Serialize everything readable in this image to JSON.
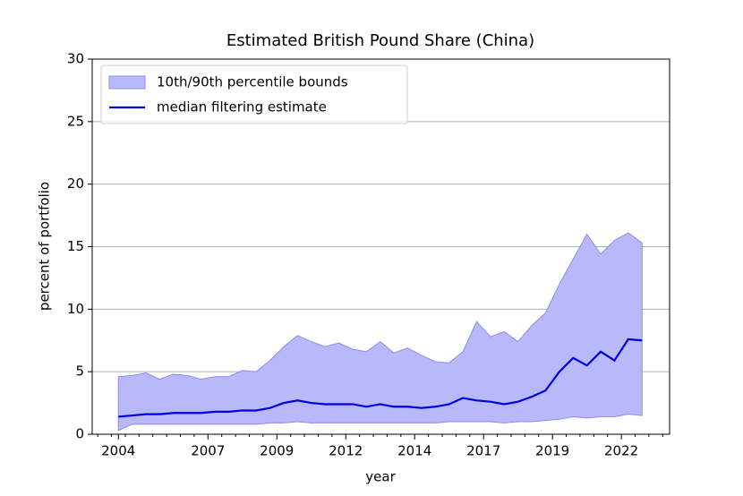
{
  "chart_data": {
    "type": "line",
    "title": "Estimated British Pound Share (China)",
    "xlabel": "year",
    "ylabel": "percent of portfolio",
    "x": [
      2003.75,
      2004.25,
      2004.75,
      2005.25,
      2005.75,
      2006.25,
      2006.75,
      2007.25,
      2007.75,
      2008.25,
      2008.75,
      2009.25,
      2009.75,
      2010.25,
      2010.75,
      2011.25,
      2011.75,
      2012.25,
      2012.75,
      2013.25,
      2013.75,
      2014.25,
      2014.75,
      2015.25,
      2015.75,
      2016.25,
      2016.75,
      2017.25,
      2017.75,
      2018.25,
      2018.75,
      2019.25,
      2019.75,
      2020.25,
      2020.75,
      2021.25,
      2021.75,
      2022.25,
      2022.75
    ],
    "band": {
      "name": "10th/90th percentile bounds",
      "color": "#b8b8fb",
      "edge": "#8c8cf0",
      "upper": [
        4.6,
        4.7,
        4.9,
        4.4,
        4.8,
        4.7,
        4.4,
        4.6,
        4.6,
        5.1,
        5.0,
        5.9,
        7.0,
        7.9,
        7.4,
        7.0,
        7.3,
        6.8,
        6.6,
        7.4,
        6.5,
        6.9,
        6.3,
        5.8,
        5.7,
        6.6,
        9.0,
        7.8,
        8.2,
        7.4,
        8.7,
        9.7,
        12.0,
        14.0,
        16.0,
        14.4,
        15.5,
        16.1,
        15.3
      ],
      "lower": [
        0.3,
        0.8,
        0.8,
        0.8,
        0.8,
        0.8,
        0.8,
        0.8,
        0.8,
        0.8,
        0.8,
        0.9,
        0.9,
        1.0,
        0.9,
        0.9,
        0.9,
        0.9,
        0.9,
        0.9,
        0.9,
        0.9,
        0.9,
        0.9,
        1.0,
        1.0,
        1.0,
        1.0,
        0.9,
        1.0,
        1.0,
        1.1,
        1.2,
        1.4,
        1.3,
        1.4,
        1.4,
        1.6,
        1.5
      ]
    },
    "series": [
      {
        "name": "median filtering estimate",
        "color": "#0000dd",
        "values": [
          1.4,
          1.5,
          1.6,
          1.6,
          1.7,
          1.7,
          1.7,
          1.8,
          1.8,
          1.9,
          1.9,
          2.1,
          2.5,
          2.7,
          2.5,
          2.4,
          2.4,
          2.4,
          2.2,
          2.4,
          2.2,
          2.2,
          2.1,
          2.2,
          2.4,
          2.9,
          2.7,
          2.6,
          2.4,
          2.6,
          3.0,
          3.5,
          5.0,
          6.1,
          5.5,
          6.6,
          5.9,
          7.6,
          7.5
        ]
      }
    ],
    "xlim": [
      2002.8,
      2023.75
    ],
    "xticks": [
      {
        "value": 2003.75,
        "label": "2004"
      },
      {
        "value": 2007,
        "label": "2007"
      },
      {
        "value": 2009.5,
        "label": "2009"
      },
      {
        "value": 2012,
        "label": "2012"
      },
      {
        "value": 2014.5,
        "label": "2014"
      },
      {
        "value": 2017,
        "label": "2017"
      },
      {
        "value": 2019.5,
        "label": "2019"
      },
      {
        "value": 2022,
        "label": "2022"
      }
    ],
    "xminorticks": [
      2003,
      2003.5,
      2004,
      2004.5,
      2005,
      2005.5,
      2006,
      2006.5,
      2007.5,
      2008,
      2008.5,
      2009,
      2010,
      2010.5,
      2011,
      2011.5,
      2012.5,
      2013,
      2013.5,
      2014,
      2015,
      2015.5,
      2016,
      2016.5,
      2017.5,
      2018,
      2018.5,
      2019,
      2020,
      2020.5,
      2021,
      2021.5,
      2022.5,
      2023,
      2023.5
    ],
    "ylim": [
      0,
      30
    ],
    "yticks": [
      0,
      5,
      10,
      15,
      20,
      25,
      30
    ],
    "grid": "y",
    "legend": "upper left"
  }
}
